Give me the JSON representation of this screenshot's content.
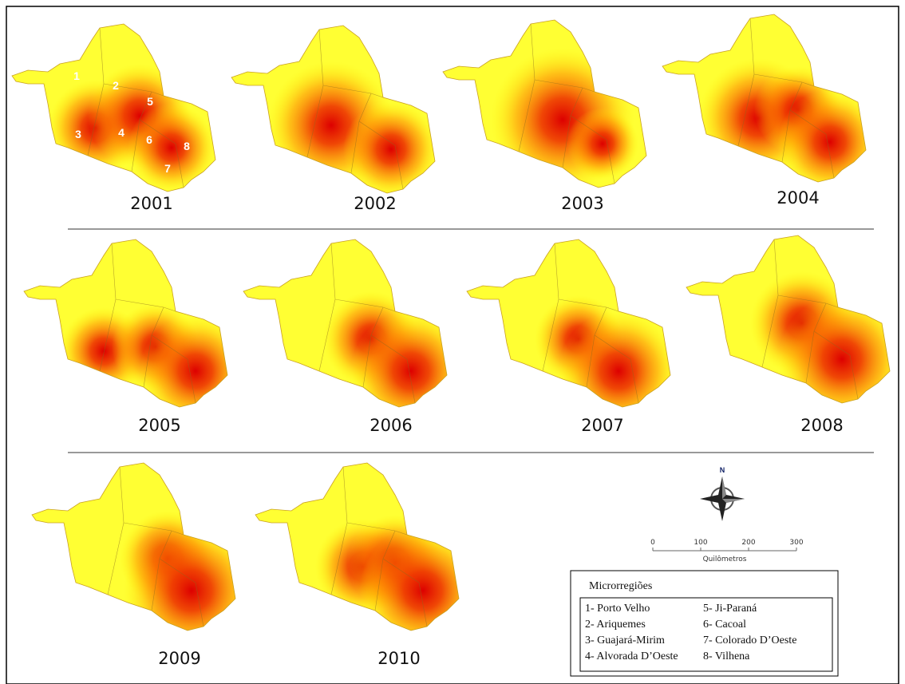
{
  "maps": [
    {
      "year": "2001",
      "labels": [
        "1",
        "2",
        "3",
        "4",
        "5",
        "6",
        "7",
        "8"
      ]
    },
    {
      "year": "2002"
    },
    {
      "year": "2003"
    },
    {
      "year": "2004"
    },
    {
      "year": "2005"
    },
    {
      "year": "2006"
    },
    {
      "year": "2007"
    },
    {
      "year": "2008"
    },
    {
      "year": "2009"
    },
    {
      "year": "2010"
    }
  ],
  "compass": "N",
  "scale": {
    "ticks": [
      "0",
      "100",
      "200",
      "300"
    ],
    "unit": "Quilômetros"
  },
  "legend": {
    "title": "Microrregiões",
    "items": [
      "1- Porto Velho",
      "2- Ariquemes",
      "3- Guajará-Mirim",
      "4- Alvorada D’Oeste",
      "5- Ji-Paraná",
      "6- Cacoal",
      "7- Colorado D’Oeste",
      "8- Vilhena"
    ]
  }
}
